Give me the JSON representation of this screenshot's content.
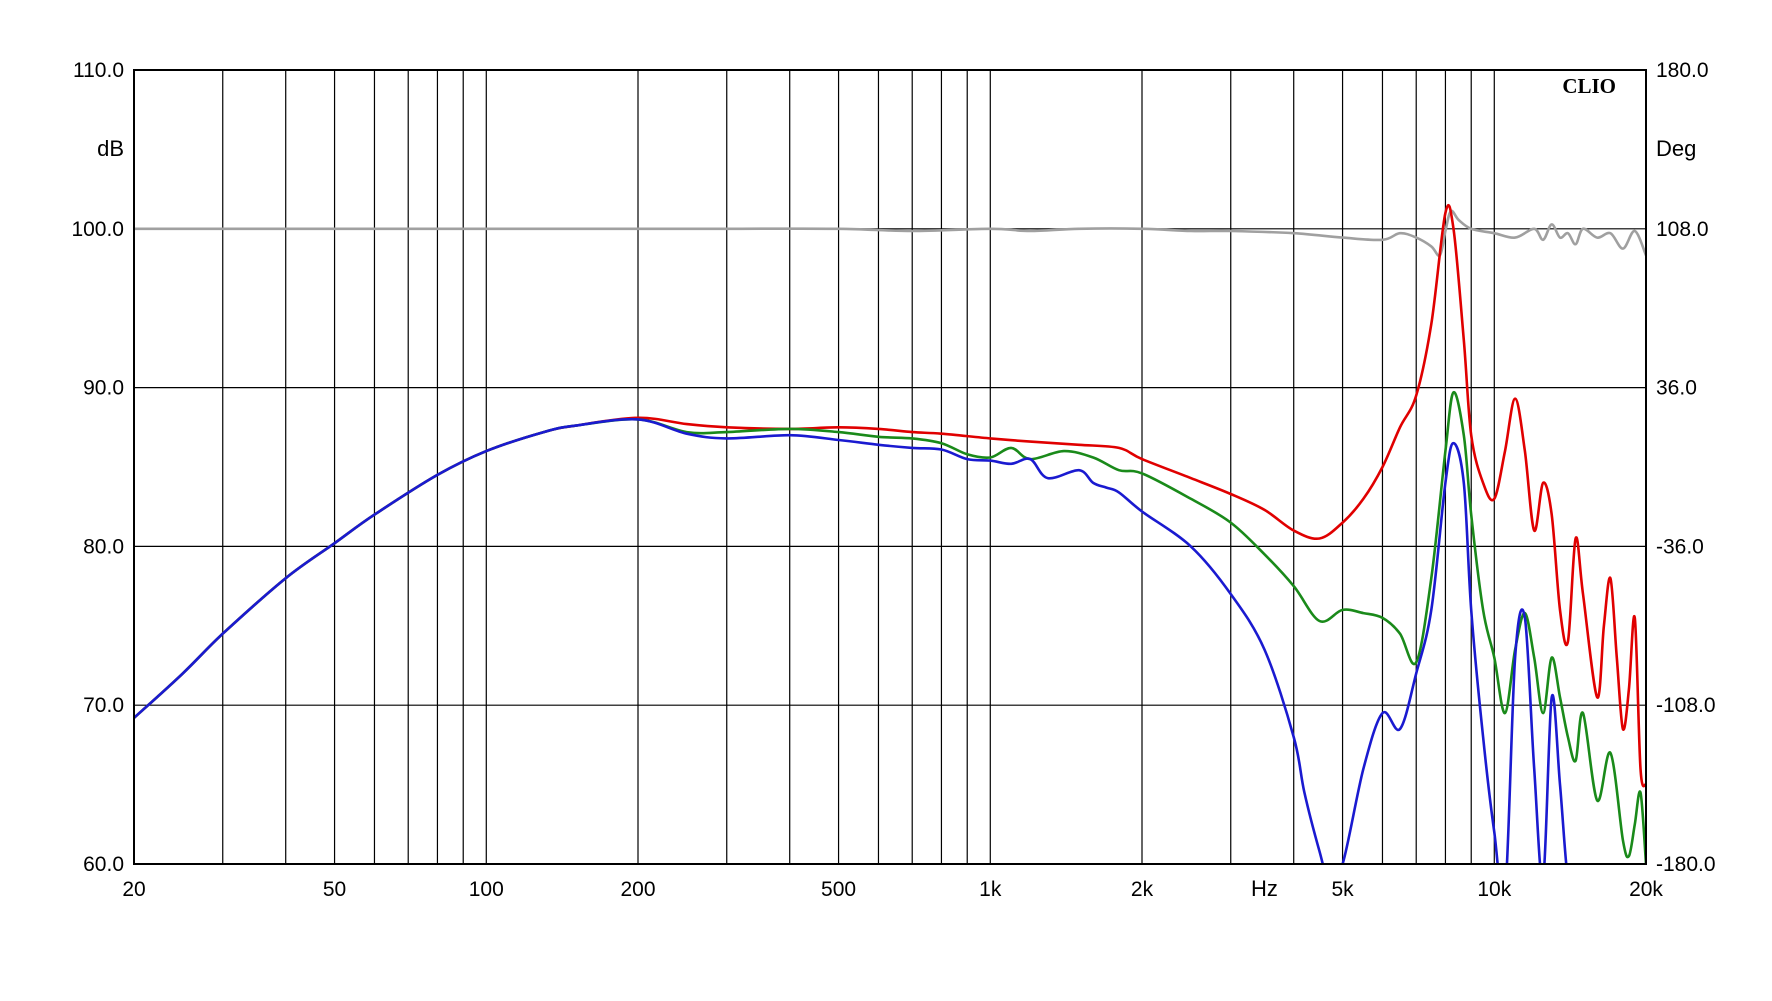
{
  "chart_data": {
    "type": "line",
    "brand": "CLIO",
    "xscale": "log",
    "xlim": [
      20,
      20000
    ],
    "ylim": [
      60,
      110
    ],
    "y2lim": [
      -180,
      180
    ],
    "grid": true,
    "ylabel": "dB",
    "y2label": "Deg",
    "xlabel": "Hz",
    "x_ticks": [
      20,
      50,
      100,
      200,
      500,
      1000,
      2000,
      5000,
      10000,
      20000
    ],
    "x_tick_labels": [
      "20",
      "50",
      "100",
      "200",
      "500",
      "1k",
      "2k",
      "5k",
      "10k",
      "20k"
    ],
    "x_minor_grid": [
      30,
      40,
      60,
      70,
      80,
      90,
      300,
      400,
      600,
      700,
      800,
      900,
      3000,
      4000,
      6000,
      7000,
      8000,
      9000
    ],
    "y_ticks": [
      60,
      70,
      80,
      90,
      100,
      110
    ],
    "y_tick_labels": [
      "60.0",
      "70.0",
      "80.0",
      "90.0",
      "100.0",
      "110.0"
    ],
    "y2_ticks": [
      -180,
      -108,
      -36,
      36,
      108,
      180
    ],
    "y2_tick_labels": [
      "-180.0",
      "-108.0",
      "-36.0",
      "36.0",
      "108.0",
      "180.0"
    ],
    "series": [
      {
        "color": "#a0a0a0",
        "axis": "y2",
        "x": [
          20,
          25,
          30,
          40,
          50,
          60,
          80,
          100,
          150,
          200,
          300,
          500,
          700,
          1000,
          1200,
          1500,
          2000,
          2500,
          3000,
          4000,
          5000,
          6000,
          6500,
          7000,
          7500,
          7800,
          8000,
          8200,
          8500,
          9000,
          10000,
          11000,
          12000,
          12500,
          13000,
          13500,
          14000,
          14500,
          15000,
          16000,
          17000,
          18000,
          19000,
          20000
        ],
        "y": [
          108,
          108,
          108,
          108,
          108,
          108,
          108,
          108,
          108,
          108,
          108,
          108,
          107,
          108,
          107,
          108,
          108,
          107,
          107,
          106,
          104,
          103,
          106,
          104,
          100,
          96,
          107,
          116,
          112,
          108,
          106,
          104,
          108,
          103,
          110,
          104,
          106,
          101,
          108,
          104,
          106,
          99,
          107,
          96
        ]
      },
      {
        "color": "#e00000",
        "axis": "y",
        "x": [
          20,
          25,
          30,
          40,
          50,
          60,
          80,
          100,
          130,
          150,
          200,
          250,
          300,
          400,
          500,
          600,
          700,
          800,
          1000,
          1200,
          1500,
          1800,
          2000,
          2500,
          3000,
          3500,
          4000,
          4500,
          5000,
          5500,
          6000,
          6500,
          7000,
          7500,
          8000,
          8300,
          8700,
          9000,
          9500,
          10000,
          10500,
          11000,
          11500,
          12000,
          12500,
          13000,
          13500,
          14000,
          14500,
          15000,
          16000,
          16500,
          17000,
          17500,
          18000,
          18500,
          19000,
          19500,
          20000
        ],
        "y": [
          69.2,
          72,
          74.5,
          78,
          80.2,
          82,
          84.5,
          86,
          87.2,
          87.6,
          88.1,
          87.7,
          87.5,
          87.4,
          87.5,
          87.4,
          87.2,
          87.1,
          86.8,
          86.6,
          86.4,
          86.2,
          85.5,
          84.3,
          83.3,
          82.3,
          81,
          80.5,
          81.5,
          83,
          85,
          87.5,
          89.5,
          94,
          101,
          100,
          93,
          87,
          84,
          83,
          86,
          89.3,
          86,
          81,
          84,
          82,
          76,
          74,
          80.5,
          77,
          70.5,
          75,
          78,
          73,
          68.5,
          71,
          75.5,
          66,
          65
        ]
      },
      {
        "color": "#1a8a1a",
        "axis": "y",
        "x": [
          20,
          25,
          30,
          40,
          50,
          60,
          80,
          100,
          130,
          150,
          200,
          250,
          300,
          400,
          500,
          600,
          700,
          800,
          900,
          1000,
          1100,
          1200,
          1400,
          1600,
          1800,
          2000,
          2500,
          3000,
          3500,
          4000,
          4500,
          5000,
          5500,
          6000,
          6500,
          7000,
          7500,
          8000,
          8300,
          8700,
          9000,
          9500,
          10000,
          10500,
          11000,
          11500,
          12000,
          12500,
          13000,
          13500,
          14000,
          14500,
          15000,
          16000,
          17000,
          18000,
          18500,
          19000,
          19500,
          20000
        ],
        "y": [
          69.2,
          72,
          74.5,
          78,
          80.2,
          82,
          84.5,
          86,
          87.2,
          87.6,
          88,
          87.2,
          87.2,
          87.4,
          87.2,
          86.9,
          86.8,
          86.5,
          85.8,
          85.6,
          86.2,
          85.5,
          86,
          85.6,
          84.8,
          84.6,
          83,
          81.5,
          79.5,
          77.5,
          75.3,
          76,
          75.8,
          75.5,
          74.5,
          72.7,
          78,
          86,
          89.7,
          87,
          82,
          76,
          73,
          69.5,
          73.5,
          75.8,
          73,
          69.5,
          73,
          70.5,
          68,
          66.5,
          69.5,
          64,
          67,
          61.5,
          60.5,
          62.5,
          64.5,
          60
        ]
      },
      {
        "color": "#1a1ad0",
        "axis": "y",
        "x": [
          20,
          25,
          30,
          40,
          50,
          60,
          80,
          100,
          130,
          150,
          200,
          250,
          300,
          400,
          500,
          600,
          700,
          800,
          900,
          1000,
          1100,
          1200,
          1300,
          1500,
          1600,
          1700,
          1800,
          2000,
          2500,
          3000,
          3500,
          4000,
          4200,
          4500,
          4700,
          5000,
          5500,
          6000,
          6500,
          7000,
          7500,
          8000,
          8300,
          8700,
          9000,
          9500,
          10000,
          10500,
          11000,
          11500,
          12000,
          12500,
          13000,
          13500,
          14000,
          14500
        ],
        "y": [
          69.2,
          72,
          74.5,
          78,
          80.2,
          82,
          84.5,
          86,
          87.2,
          87.6,
          88,
          87.1,
          86.8,
          87,
          86.7,
          86.4,
          86.2,
          86.1,
          85.5,
          85.4,
          85.2,
          85.5,
          84.3,
          84.8,
          84,
          83.7,
          83.4,
          82.2,
          80,
          77,
          73.5,
          68,
          64.5,
          60.8,
          59,
          60,
          66,
          69.5,
          68.5,
          72,
          76,
          84,
          86.5,
          84,
          76,
          68,
          62,
          58,
          73,
          75.5,
          66,
          59,
          70.5,
          65,
          59,
          58
        ]
      }
    ]
  }
}
